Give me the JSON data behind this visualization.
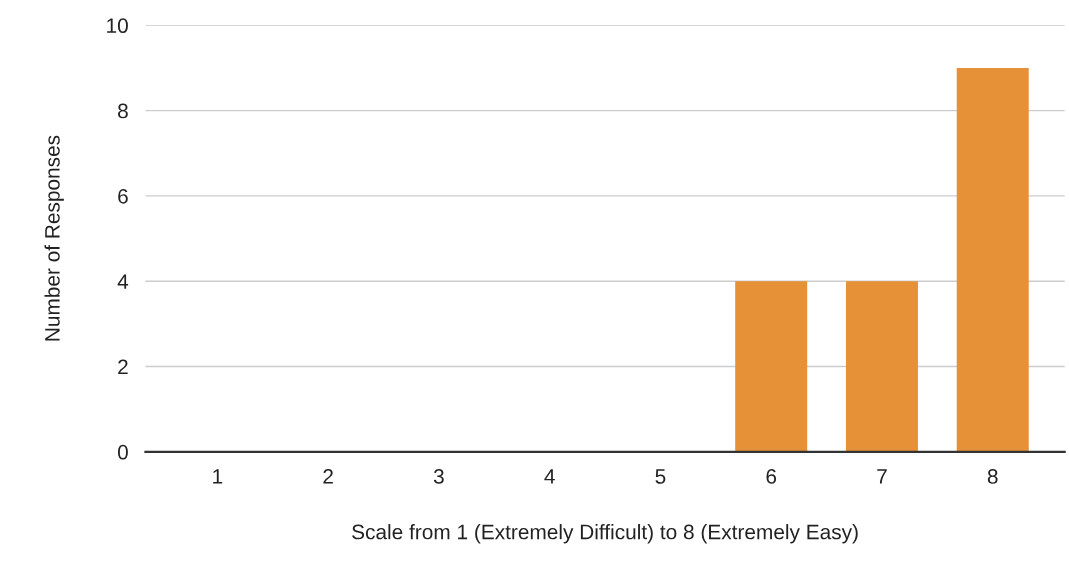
{
  "chart_data": {
    "type": "bar",
    "xlabel": "Scale from 1 (Extremely Difficult) to 8 (Extremely Easy)",
    "ylabel": "Number of Responses",
    "categories": [
      "1",
      "2",
      "3",
      "4",
      "5",
      "6",
      "7",
      "8"
    ],
    "values": [
      0,
      0,
      0,
      0,
      0,
      4,
      4,
      9
    ],
    "color": "#e69138",
    "ylim": [
      0,
      10
    ],
    "yticks": [
      0,
      2,
      4,
      6,
      8,
      10
    ],
    "grid": "y"
  }
}
